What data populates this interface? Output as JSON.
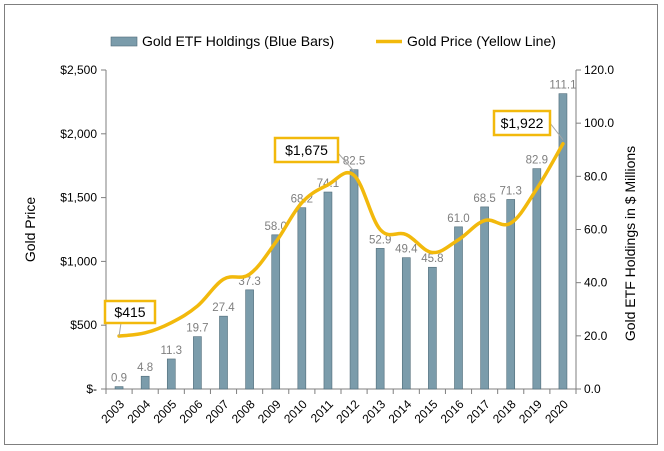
{
  "chart_data": {
    "type": "bar+line",
    "categories": [
      "2003",
      "2004",
      "2005",
      "2006",
      "2007",
      "2008",
      "2009",
      "2010",
      "2011",
      "2012",
      "2013",
      "2014",
      "2015",
      "2016",
      "2017",
      "2018",
      "2019",
      "2020"
    ],
    "series": [
      {
        "name": "Gold ETF Holdings (Blue Bars)",
        "type": "bar",
        "axis": "right",
        "color": "#7b9cab",
        "values": [
          0.9,
          4.8,
          11.3,
          19.7,
          27.4,
          37.3,
          58.0,
          68.2,
          74.1,
          82.5,
          52.9,
          49.4,
          45.8,
          61.0,
          68.5,
          71.3,
          82.9,
          111.1
        ],
        "labels": [
          "0.9",
          "4.8",
          "11.3",
          "19.7",
          "27.4",
          "37.3",
          "58.0",
          "68.2",
          "74.1",
          "82.5",
          "52.9",
          "49.4",
          "45.8",
          "61.0",
          "68.5",
          "71.3",
          "82.9",
          "111.1"
        ]
      },
      {
        "name": "Gold Price (Yellow Line)",
        "type": "line",
        "axis": "left",
        "color": "#f2b90c",
        "values": [
          415,
          440,
          520,
          650,
          860,
          900,
          1150,
          1460,
          1600,
          1675,
          1250,
          1210,
          1070,
          1170,
          1320,
          1300,
          1570,
          1922
        ]
      }
    ],
    "y_left": {
      "label": "Gold Price",
      "range": [
        0,
        2500
      ],
      "ticks": [
        0,
        500,
        1000,
        1500,
        2000,
        2500
      ],
      "tick_labels": [
        "$-",
        "$500",
        "$1,000",
        "$1,500",
        "$2,000",
        "$2,500"
      ]
    },
    "y_right": {
      "label": "Gold ETF Holdings in $ Millions",
      "range": [
        0,
        120
      ],
      "ticks": [
        0,
        20,
        40,
        60,
        80,
        100,
        120
      ],
      "tick_labels": [
        "0.0",
        "20.0",
        "40.0",
        "60.0",
        "80.0",
        "100.0",
        "120.0"
      ]
    },
    "callouts": [
      {
        "text": "$415",
        "category": "2003",
        "value": 415
      },
      {
        "text": "$1,675",
        "category": "2012",
        "value": 1675
      },
      {
        "text": "$1,922",
        "category": "2020",
        "value": 1922
      }
    ],
    "legend_position": "top",
    "grid": false,
    "colors": {
      "bar": "#7b9cab",
      "line": "#f2b90c",
      "callout_border": "#f2b90c",
      "axis": "#7f7f7f",
      "text": "#000000",
      "bar_label": "#7f7f7f"
    }
  }
}
